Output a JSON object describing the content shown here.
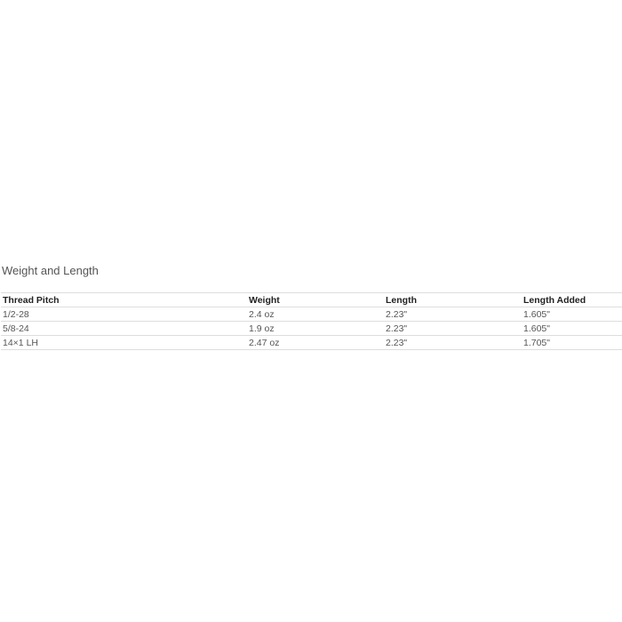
{
  "section_title": "Weight and Length",
  "table": {
    "headers": [
      "Thread Pitch",
      "Weight",
      "Length",
      "Length Added"
    ],
    "rows": [
      [
        "1/2-28",
        "2.4 oz",
        "2.23\"",
        "1.605\""
      ],
      [
        "5/8-24",
        "1.9 oz",
        "2.23\"",
        "1.605\""
      ],
      [
        "14×1 LH",
        "2.47 oz",
        "2.23\"",
        "1.705\""
      ]
    ]
  }
}
